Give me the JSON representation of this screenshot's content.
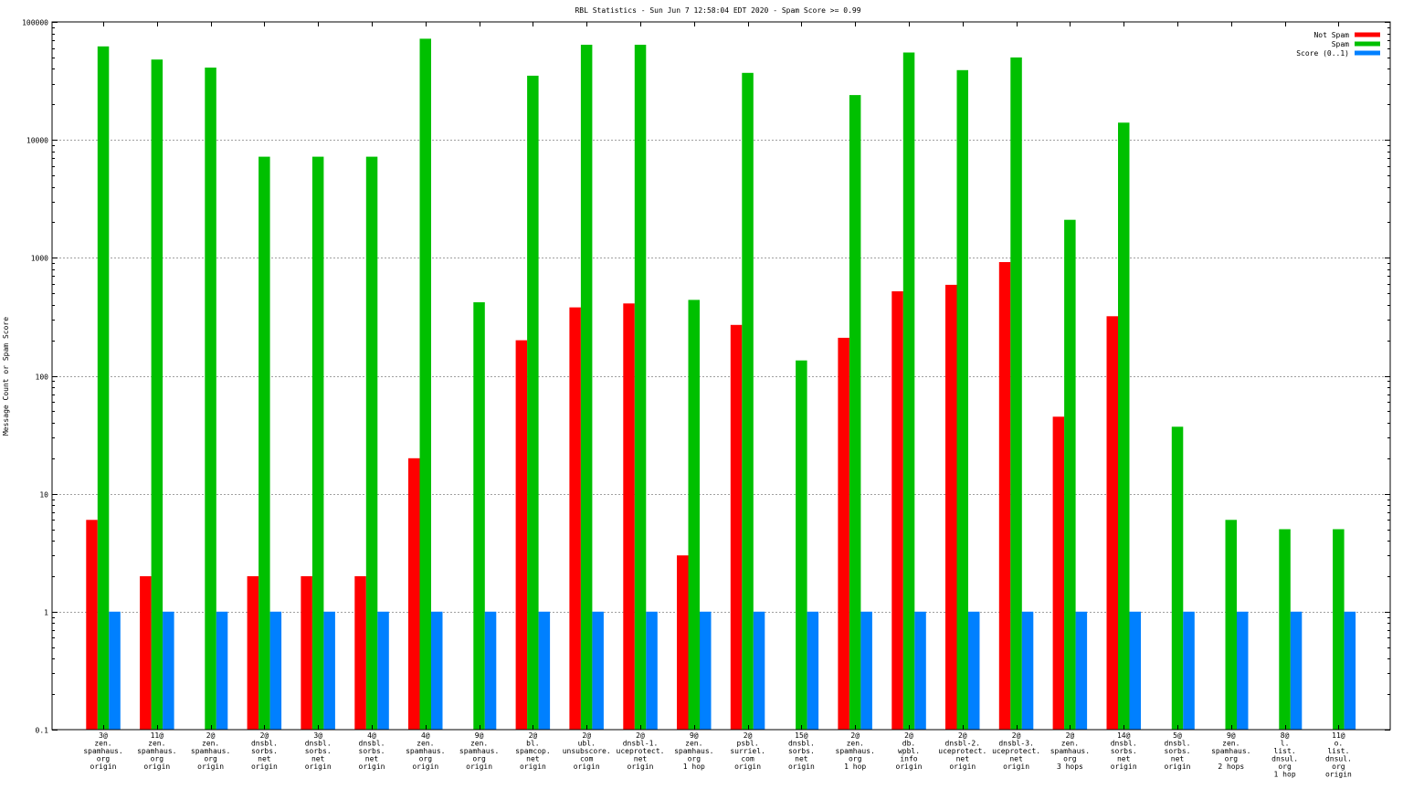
{
  "chart_data": {
    "type": "bar",
    "title": "RBL Statistics - Sun Jun  7 12:58:04 EDT 2020 - Spam Score >= 0.99",
    "xlabel": "",
    "ylabel": "Message Count or Spam Score",
    "yscale": "log",
    "ylim": [
      0.1,
      100000
    ],
    "yticks": [
      "0.1",
      "1",
      "10",
      "100",
      "1000",
      "10000",
      "100000"
    ],
    "grid": true,
    "legend_position": "top-right",
    "categories": [
      [
        "3@",
        "zen.",
        "spamhaus.",
        "org",
        "origin"
      ],
      [
        "11@",
        "zen.",
        "spamhaus.",
        "org",
        "origin"
      ],
      [
        "2@",
        "zen.",
        "spamhaus.",
        "org",
        "origin"
      ],
      [
        "2@",
        "dnsbl.",
        "sorbs.",
        "net",
        "origin"
      ],
      [
        "3@",
        "dnsbl.",
        "sorbs.",
        "net",
        "origin"
      ],
      [
        "4@",
        "dnsbl.",
        "sorbs.",
        "net",
        "origin"
      ],
      [
        "4@",
        "zen.",
        "spamhaus.",
        "org",
        "origin"
      ],
      [
        "9@",
        "zen.",
        "spamhaus.",
        "org",
        "origin"
      ],
      [
        "2@",
        "bl.",
        "spamcop.",
        "net",
        "origin"
      ],
      [
        "2@",
        "ubl.",
        "unsubscore.",
        "com",
        "origin"
      ],
      [
        "2@",
        "dnsbl-1.",
        "uceprotect.",
        "net",
        "origin"
      ],
      [
        "9@",
        "zen.",
        "spamhaus.",
        "org",
        "1 hop"
      ],
      [
        "2@",
        "psbl.",
        "surriel.",
        "com",
        "origin"
      ],
      [
        "15@",
        "dnsbl.",
        "sorbs.",
        "net",
        "origin"
      ],
      [
        "2@",
        "zen.",
        "spamhaus.",
        "org",
        "1 hop"
      ],
      [
        "2@",
        "db.",
        "wpbl.",
        "info",
        "origin"
      ],
      [
        "2@",
        "dnsbl-2.",
        "uceprotect.",
        "net",
        "origin"
      ],
      [
        "2@",
        "dnsbl-3.",
        "uceprotect.",
        "net",
        "origin"
      ],
      [
        "2@",
        "zen.",
        "spamhaus.",
        "org",
        "3 hops"
      ],
      [
        "14@",
        "dnsbl.",
        "sorbs.",
        "net",
        "origin"
      ],
      [
        "5@",
        "dnsbl.",
        "sorbs.",
        "net",
        "origin"
      ],
      [
        "9@",
        "zen.",
        "spamhaus.",
        "org",
        "2 hops"
      ],
      [
        "8@",
        "l.",
        "list.",
        "dnsul.",
        "org",
        "1 hop"
      ],
      [
        "11@",
        "o.",
        "list.",
        "dnsul.",
        "org",
        "origin"
      ]
    ],
    "series": [
      {
        "name": "Not Spam",
        "color": "#ff0000",
        "values": [
          6,
          2,
          null,
          2,
          2,
          2,
          20,
          null,
          200,
          380,
          410,
          3,
          270,
          null,
          210,
          520,
          590,
          920,
          45,
          320,
          null,
          null,
          null,
          null
        ]
      },
      {
        "name": "Spam",
        "color": "#00c000",
        "values": [
          62000,
          48000,
          41000,
          7200,
          7200,
          7200,
          72000,
          420,
          35000,
          64000,
          64000,
          440,
          37000,
          135,
          24000,
          55000,
          39000,
          50000,
          2100,
          14000,
          37,
          6,
          5,
          5
        ]
      },
      {
        "name": "Score (0..1)",
        "color": "#0080ff",
        "values": [
          1,
          1,
          1,
          1,
          1,
          1,
          1,
          1,
          1,
          1,
          1,
          1,
          1,
          1,
          1,
          1,
          1,
          1,
          1,
          1,
          1,
          1,
          1,
          1
        ]
      }
    ]
  }
}
